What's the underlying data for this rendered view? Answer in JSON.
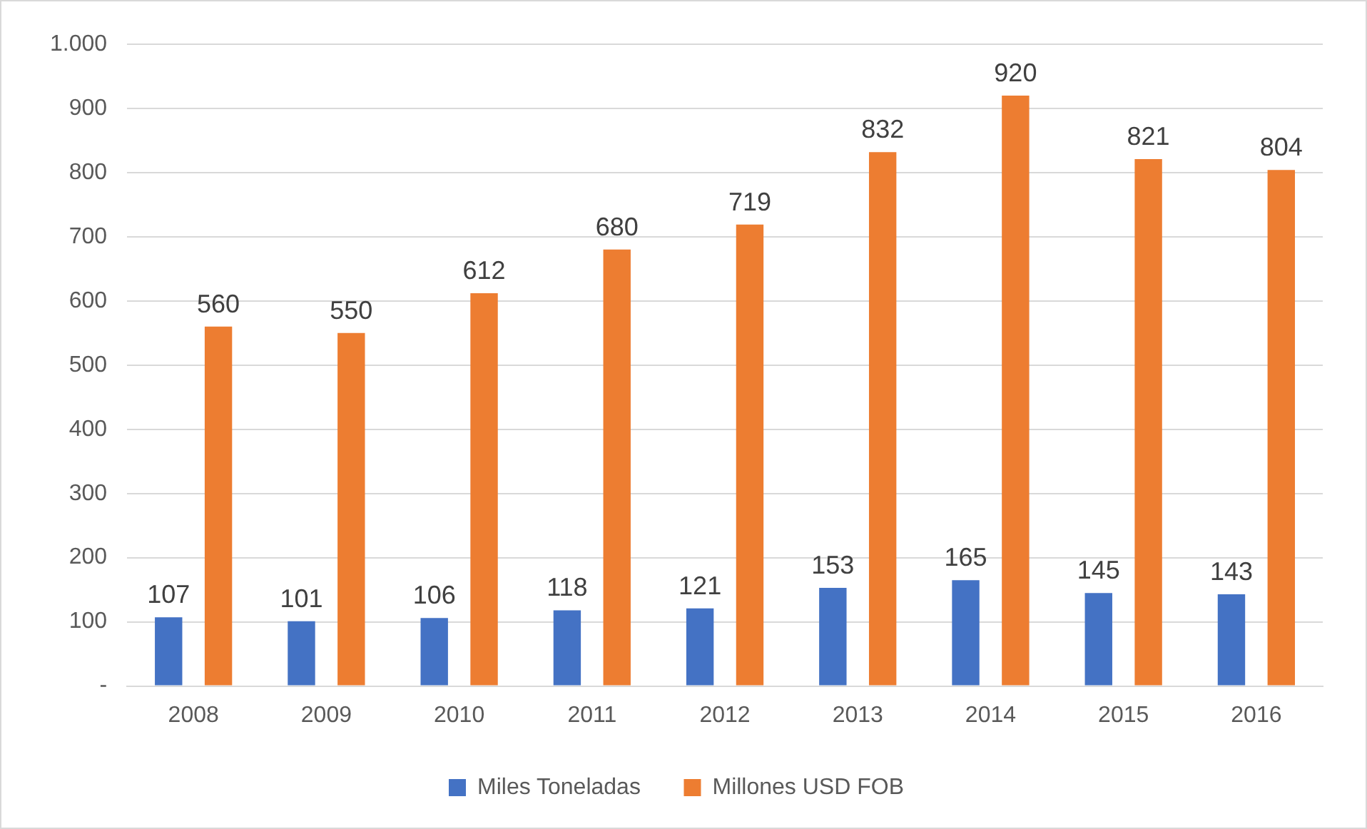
{
  "chart_data": {
    "type": "bar",
    "categories": [
      "2008",
      "2009",
      "2010",
      "2011",
      "2012",
      "2013",
      "2014",
      "2015",
      "2016"
    ],
    "series": [
      {
        "name": "Miles Toneladas",
        "color": "#4472c4",
        "values": [
          107,
          101,
          106,
          118,
          121,
          153,
          165,
          145,
          143
        ]
      },
      {
        "name": "Millones USD FOB",
        "color": "#ed7d31",
        "values": [
          560,
          550,
          612,
          680,
          719,
          832,
          920,
          821,
          804
        ]
      }
    ],
    "ylim": [
      0,
      1000
    ],
    "yticks": [
      {
        "value": 0,
        "label": "-"
      },
      100,
      200,
      300,
      400,
      500,
      600,
      700,
      800,
      900,
      {
        "value": 1000,
        "label": "1.000"
      }
    ],
    "grid": "y",
    "legend": "bottom",
    "data_labels": true
  }
}
